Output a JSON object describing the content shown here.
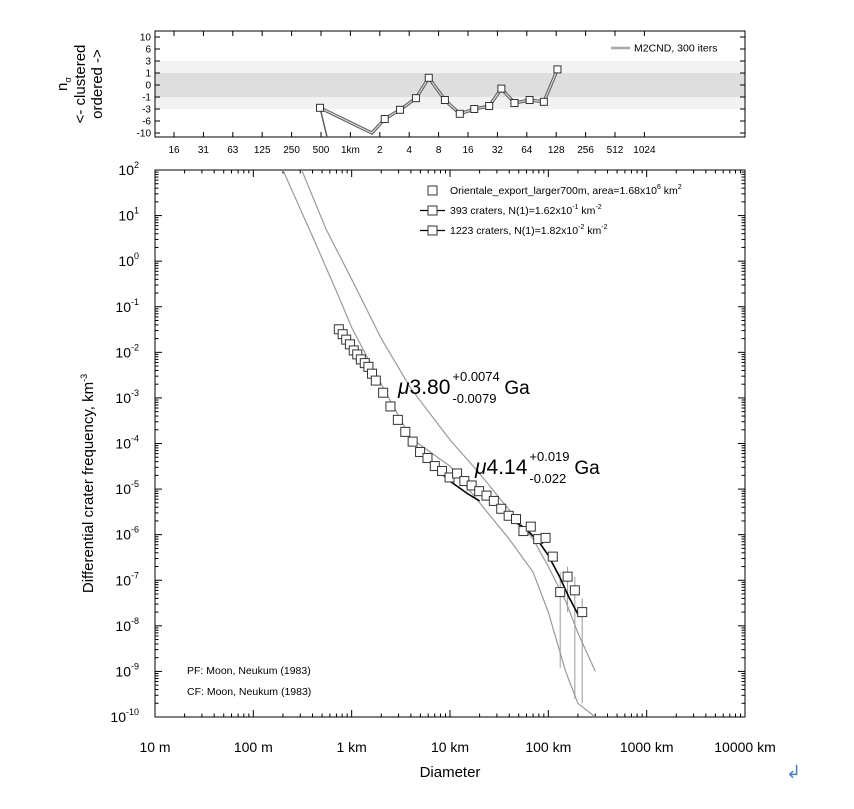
{
  "chart_data": [
    {
      "type": "line",
      "ylabel_lines": [
        "n",
        "<- clustered",
        "ordered ->"
      ],
      "ylabel_sub": "σ",
      "legend": "M2CND, 300 iters",
      "x_ticks": [
        "16",
        "31",
        "63",
        "125",
        "250",
        "500",
        "1km",
        "2",
        "4",
        "8",
        "16",
        "32",
        "64",
        "128",
        "256",
        "512",
        "1024"
      ],
      "y_ticks": [
        "10",
        "6",
        "3",
        "1",
        "0",
        "-1",
        "-3",
        "-6",
        "-10"
      ],
      "ylim": [
        -10,
        10
      ],
      "bands": [
        [
          -1,
          1
        ],
        [
          -3,
          3
        ]
      ],
      "series": [
        {
          "x_km": [
            0.5,
            1.7,
            2.3,
            3.3,
            4.8,
            6.5,
            9.5,
            13.5,
            19,
            27,
            36,
            49,
            70,
            98,
            135
          ],
          "y": [
            -2.8,
            -10,
            -5.5,
            -3.2,
            -1.2,
            0.6,
            -1.5,
            -4.2,
            -3.0,
            -2.5,
            -0.3,
            -2.0,
            -1.5,
            -1.8,
            1.6
          ]
        }
      ]
    },
    {
      "type": "scatter",
      "xlabel": "Diameter",
      "ylabel": "Differential crater frequency, km",
      "ylabel_sup": "-3",
      "x_scale": "log",
      "y_scale": "log",
      "xlim_km": [
        0.01,
        10000
      ],
      "ylim": [
        1e-10,
        100
      ],
      "x_ticks": [
        "10 m",
        "100 m",
        "1 km",
        "10 km",
        "100 km",
        "1000 km",
        "10000 km"
      ],
      "y_ticks": [
        {
          "base": "10",
          "exp": "2"
        },
        {
          "base": "10",
          "exp": "1"
        },
        {
          "base": "10",
          "exp": "0"
        },
        {
          "base": "10",
          "exp": "-1"
        },
        {
          "base": "10",
          "exp": "-2"
        },
        {
          "base": "10",
          "exp": "-3"
        },
        {
          "base": "10",
          "exp": "-4"
        },
        {
          "base": "10",
          "exp": "-5"
        },
        {
          "base": "10",
          "exp": "-6"
        },
        {
          "base": "10",
          "exp": "-7"
        },
        {
          "base": "10",
          "exp": "-8"
        },
        {
          "base": "10",
          "exp": "-9"
        },
        {
          "base": "10",
          "exp": "-10"
        }
      ],
      "legend": [
        {
          "text": "Orientale_export_larger700m, area=1.68x10",
          "sup": "6",
          "tail": " km",
          "sup2": "2"
        },
        {
          "text": "393 craters, N(1)=1.62x10",
          "sup": "-1",
          "tail": " km",
          "sup2": "-2"
        },
        {
          "text": "1223 craters, N(1)=1.82x10",
          "sup": "-2",
          "tail": " km",
          "sup2": "-2"
        }
      ],
      "annotations": [
        {
          "mu": "μ",
          "value": "3.80",
          "plus": "+0.0074",
          "minus": "-0.0079",
          "unit": "Ga"
        },
        {
          "mu": "μ",
          "value": "4.14",
          "plus": "+0.019",
          "minus": "-0.022",
          "unit": "Ga"
        }
      ],
      "footnotes": [
        "PF: Moon, Neukum (1983)",
        "CF: Moon, Neukum (1983)"
      ],
      "points": {
        "x_km": [
          0.74,
          0.81,
          0.88,
          0.96,
          1.05,
          1.14,
          1.24,
          1.36,
          1.48,
          1.61,
          1.76,
          2.09,
          2.48,
          2.95,
          3.51,
          4.17,
          4.96,
          5.9,
          7.0,
          8.3,
          9.9,
          11.8,
          14.0,
          16.6,
          19.8,
          23.5,
          27.9,
          33.2,
          39.5,
          46.9,
          55.8,
          66.3,
          78.8,
          93.7,
          111,
          132,
          157,
          186,
          221
        ],
        "y": [
          0.032,
          0.025,
          0.019,
          0.015,
          0.011,
          0.009,
          0.007,
          0.0058,
          0.0048,
          0.0034,
          0.0024,
          0.0013,
          0.00065,
          0.00033,
          0.00018,
          0.00011,
          6.5e-05,
          4.8e-05,
          3.2e-05,
          2.5e-05,
          1.8e-05,
          2.2e-05,
          1.5e-05,
          1.2e-05,
          9e-06,
          7.2e-06,
          5.5e-06,
          3.7e-06,
          2.6e-06,
          2.2e-06,
          1.2e-06,
          1.5e-06,
          8e-07,
          8.5e-07,
          3.3e-07,
          5.5e-08,
          1.2e-07,
          6e-08,
          2e-08
        ],
        "err_low": [
          null,
          null,
          null,
          null,
          null,
          null,
          null,
          null,
          null,
          null,
          null,
          null,
          null,
          null,
          null,
          null,
          null,
          null,
          null,
          null,
          null,
          null,
          null,
          null,
          null,
          null,
          null,
          null,
          null,
          null,
          null,
          null,
          null,
          null,
          null,
          1.2e-09,
          2e-08,
          2.5e-10,
          2e-10
        ],
        "err_high": [
          null,
          null,
          null,
          null,
          null,
          null,
          null,
          null,
          null,
          null,
          null,
          null,
          null,
          null,
          null,
          null,
          null,
          null,
          null,
          null,
          null,
          null,
          null,
          null,
          null,
          null,
          null,
          null,
          null,
          null,
          null,
          null,
          null,
          null,
          null,
          1.5e-07,
          2e-07,
          1.2e-07,
          4e-08
        ]
      },
      "curves": {
        "isochron_young": {
          "x_km": [
            0.2,
            0.4,
            0.7,
            1,
            2,
            4,
            10,
            20,
            40,
            70,
            100,
            150,
            200,
            300
          ],
          "y": [
            100,
            3.5,
            0.22,
            0.035,
            0.002,
            0.00013,
            3.2e-05,
            5e-06,
            8e-07,
            1.5e-07,
            2e-08,
            1e-09,
            2e-10,
            1e-10
          ]
        },
        "isochron_old": {
          "x_km": [
            0.31,
            0.55,
            1,
            2,
            4,
            10,
            20,
            40,
            70,
            100,
            150,
            200,
            300
          ],
          "y": [
            100,
            5.0,
            0.4,
            0.02,
            0.0016,
            0.00012,
            2.2e-05,
            3.5e-06,
            8e-07,
            2e-07,
            3.5e-08,
            7e-09,
            1e-09
          ]
        },
        "fit_393": {
          "x_km": [
            4.8,
            7,
            10,
            15,
            20
          ],
          "y": [
            7e-05,
            3e-05,
            1.5e-05,
            8e-06,
            5.5e-06
          ]
        },
        "fit_1223": {
          "x_km": [
            40,
            60,
            80,
            100,
            130,
            160,
            200
          ],
          "y": [
            2.3e-06,
            1.3e-06,
            7e-07,
            3.5e-07,
            1.2e-07,
            4.5e-08,
            1.8e-08
          ]
        }
      }
    }
  ]
}
